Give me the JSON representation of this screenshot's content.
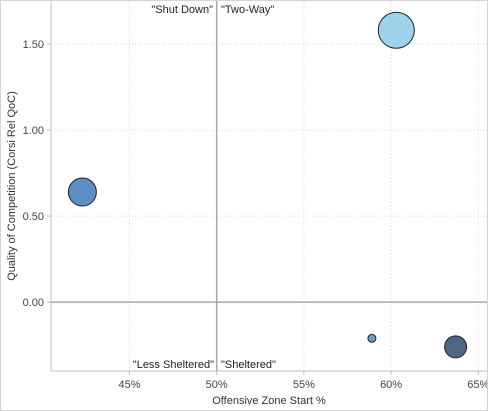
{
  "chart_data": {
    "type": "scatter",
    "xlabel": "Offensive Zone Start %",
    "ylabel": "Quality of Competition (Corsi Rel QoC)",
    "xlim": [
      0.405,
      0.655
    ],
    "ylim": [
      -0.4,
      1.75
    ],
    "x_ticks": [
      {
        "value": 0.45,
        "label": "45%"
      },
      {
        "value": 0.5,
        "label": "50%"
      },
      {
        "value": 0.55,
        "label": "55%"
      },
      {
        "value": 0.6,
        "label": "60%"
      },
      {
        "value": 0.65,
        "label": "65%"
      }
    ],
    "y_ticks": [
      {
        "value": 0.0,
        "label": "0.00"
      },
      {
        "value": 0.5,
        "label": "0.50"
      },
      {
        "value": 1.0,
        "label": "1.00"
      },
      {
        "value": 1.5,
        "label": "1.50"
      }
    ],
    "grid": true,
    "reference_lines": {
      "x": 0.5,
      "y": 0.0
    },
    "quadrant_labels": {
      "top_left": "\"Shut Down\"",
      "top_right": "\"Two-Way\"",
      "bottom_left": "\"Less Sheltered\"",
      "bottom_right": "\"Sheltered\""
    },
    "points": [
      {
        "x": 0.423,
        "y": 0.64,
        "size": 14,
        "color": "#5b8fc2"
      },
      {
        "x": 0.603,
        "y": 1.58,
        "size": 18,
        "color": "#9dd3ea"
      },
      {
        "x": 0.589,
        "y": -0.21,
        "size": 4,
        "color": "#6d9ac5"
      },
      {
        "x": 0.637,
        "y": -0.26,
        "size": 11,
        "color": "#4f6583"
      }
    ]
  }
}
